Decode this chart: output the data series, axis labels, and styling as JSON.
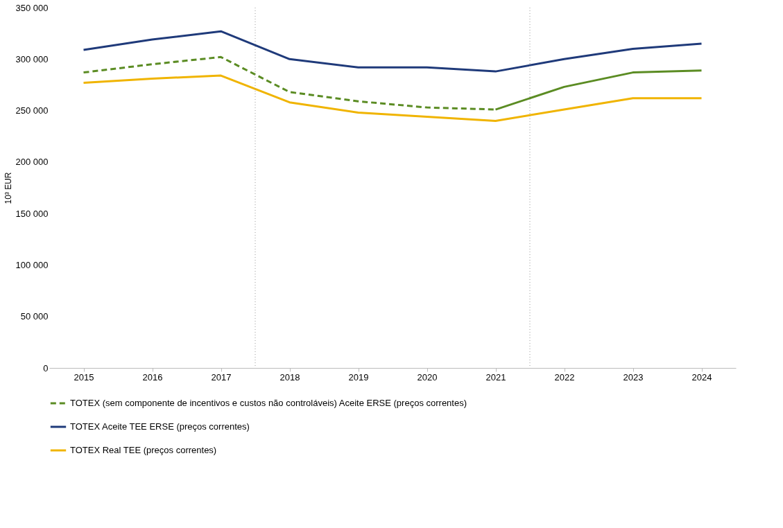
{
  "chart_data": {
    "type": "line",
    "ylabel": "10³ EUR",
    "x": [
      2015,
      2016,
      2017,
      2018,
      2019,
      2020,
      2021,
      2022,
      2023,
      2024
    ],
    "xlim": [
      2014.5,
      2024.5
    ],
    "xticks": [
      2015,
      2016,
      2017,
      2018,
      2019,
      2020,
      2021,
      2022,
      2023,
      2024
    ],
    "ylim": [
      0,
      350000
    ],
    "yticks": [
      {
        "value": 0,
        "label": "0"
      },
      {
        "value": 50000,
        "label": "50 000"
      },
      {
        "value": 100000,
        "label": "100 000"
      },
      {
        "value": 150000,
        "label": "150 000"
      },
      {
        "value": 200000,
        "label": "200 000"
      },
      {
        "value": 250000,
        "label": "250 000"
      },
      {
        "value": 300000,
        "label": "300 000"
      },
      {
        "value": 350000,
        "label": "350 000"
      }
    ],
    "grid": false,
    "legend": "bottom",
    "marker": "none",
    "series": [
      {
        "name": "TOTEX (sem componente de incentivos e custos não controláveis) Aceite ERSE (preços correntes)",
        "color": "#5b8c23",
        "line_style": "dashed",
        "values": [
          287000,
          295000,
          302000,
          268000,
          259000,
          253000,
          251000,
          null,
          null,
          null
        ]
      },
      {
        "name": "TOTEX Aceite TEE ERSE (preços correntes)",
        "color": "#1f3a7a",
        "line_style": "solid",
        "values": [
          309000,
          319000,
          327000,
          300000,
          292000,
          292000,
          288000,
          300000,
          310000,
          315000
        ]
      },
      {
        "name": "TOTEX Real TEE (preços correntes)",
        "color": "#f0b400",
        "line_style": "solid",
        "values": [
          277000,
          281000,
          284000,
          258000,
          248000,
          244000,
          240000,
          251000,
          262000,
          262000
        ]
      },
      {
        "color": "#5b8c23",
        "line_style": "solid",
        "values": [
          null,
          null,
          null,
          null,
          null,
          null,
          251000,
          273000,
          287000,
          289000
        ]
      }
    ],
    "ref_lines": [
      {
        "axis": "x",
        "value": 2017.5,
        "color": "#999999",
        "line_style": "dotted"
      },
      {
        "axis": "x",
        "value": 2021.5,
        "color": "#999999",
        "line_style": "dotted"
      }
    ]
  }
}
